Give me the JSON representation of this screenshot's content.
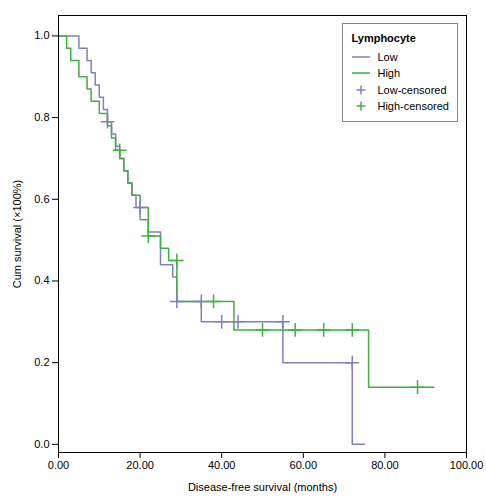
{
  "chart_data": {
    "type": "line",
    "xlabel": "Disease-free survival (months)",
    "ylabel": "Cum survival (×100%)",
    "xlim": [
      0,
      100
    ],
    "ylim": [
      -0.02,
      1.05
    ],
    "xticks": [
      {
        "value": 0,
        "label": "0.00"
      },
      {
        "value": 20,
        "label": "20.00"
      },
      {
        "value": 40,
        "label": "40.00"
      },
      {
        "value": 60,
        "label": "60.00"
      },
      {
        "value": 80,
        "label": "80.00"
      },
      {
        "value": 100,
        "label": "100.00"
      }
    ],
    "yticks": [
      {
        "value": 0,
        "label": "0.0"
      },
      {
        "value": 0.2,
        "label": "0.2"
      },
      {
        "value": 0.4,
        "label": "0.4"
      },
      {
        "value": 0.6,
        "label": "0.6"
      },
      {
        "value": 0.8,
        "label": "0.8"
      },
      {
        "value": 1,
        "label": "1.0"
      }
    ],
    "legend": "upper right",
    "legend_title": "Lymphocyte",
    "series": [
      {
        "name": "Low",
        "type": "line",
        "color": "#8080c0",
        "x": [
          0,
          5,
          5,
          7,
          7,
          8,
          8,
          9,
          9,
          10,
          10,
          11,
          11,
          12,
          12,
          13,
          13,
          14,
          14,
          15,
          15,
          16,
          16,
          17,
          17,
          18,
          18,
          19,
          19,
          20,
          20,
          22,
          22,
          25,
          25,
          28,
          28,
          29,
          29,
          30,
          30,
          32,
          32,
          35,
          35,
          36,
          36,
          40,
          40,
          42,
          42,
          44,
          44,
          46,
          46,
          50,
          50,
          52,
          52,
          55,
          55,
          72,
          72,
          74,
          74,
          75
        ],
        "values": [
          1.0,
          1.0,
          0.97,
          0.97,
          0.94,
          0.94,
          0.91,
          0.91,
          0.88,
          0.88,
          0.85,
          0.85,
          0.82,
          0.82,
          0.79,
          0.79,
          0.76,
          0.76,
          0.73,
          0.73,
          0.7,
          0.7,
          0.67,
          0.67,
          0.64,
          0.64,
          0.61,
          0.61,
          0.58,
          0.58,
          0.55,
          0.55,
          0.52,
          0.52,
          0.44,
          0.44,
          0.41,
          0.41,
          0.35,
          0.35,
          0.35,
          0.35,
          0.35,
          0.35,
          0.3,
          0.3,
          0.3,
          0.3,
          0.3,
          0.3,
          0.3,
          0.3,
          0.3,
          0.3,
          0.3,
          0.3,
          0.3,
          0.3,
          0.3,
          0.3,
          0.2,
          0.2,
          0.0,
          0.0,
          0.0,
          0.0
        ]
      },
      {
        "name": "High",
        "type": "line",
        "color": "#40b040",
        "x": [
          0,
          2,
          2,
          3,
          3,
          5,
          5,
          7,
          7,
          8,
          8,
          10,
          10,
          12,
          12,
          13,
          13,
          14,
          14,
          15,
          15,
          16,
          16,
          17,
          17,
          18,
          18,
          20,
          20,
          22,
          22,
          25,
          25,
          27,
          27,
          29,
          29,
          32,
          32,
          35,
          35,
          38,
          38,
          40,
          40,
          43,
          43,
          47,
          47,
          50,
          50,
          58,
          58,
          65,
          65,
          72,
          72,
          76,
          76,
          88,
          88,
          92
        ],
        "values": [
          1.0,
          1.0,
          0.97,
          0.97,
          0.94,
          0.94,
          0.9,
          0.9,
          0.87,
          0.87,
          0.84,
          0.84,
          0.81,
          0.81,
          0.78,
          0.78,
          0.75,
          0.75,
          0.72,
          0.72,
          0.7,
          0.7,
          0.67,
          0.67,
          0.64,
          0.64,
          0.61,
          0.61,
          0.58,
          0.58,
          0.51,
          0.51,
          0.48,
          0.48,
          0.45,
          0.45,
          0.35,
          0.35,
          0.35,
          0.35,
          0.35,
          0.35,
          0.35,
          0.35,
          0.35,
          0.35,
          0.28,
          0.28,
          0.28,
          0.28,
          0.28,
          0.28,
          0.28,
          0.28,
          0.28,
          0.28,
          0.28,
          0.28,
          0.14,
          0.14,
          0.14,
          0.14
        ]
      },
      {
        "name": "Low-censored",
        "type": "scatter",
        "marker": "plus",
        "color": "#8080c0",
        "x": [
          12,
          20,
          29,
          35,
          40,
          44,
          55,
          72
        ],
        "values": [
          0.79,
          0.58,
          0.35,
          0.35,
          0.3,
          0.3,
          0.3,
          0.2
        ]
      },
      {
        "name": "High-censored",
        "type": "scatter",
        "marker": "plus",
        "color": "#40b040",
        "x": [
          15,
          22,
          29,
          38,
          50,
          58,
          65,
          72,
          88
        ],
        "values": [
          0.72,
          0.51,
          0.45,
          0.35,
          0.28,
          0.28,
          0.28,
          0.28,
          0.14
        ]
      }
    ]
  }
}
